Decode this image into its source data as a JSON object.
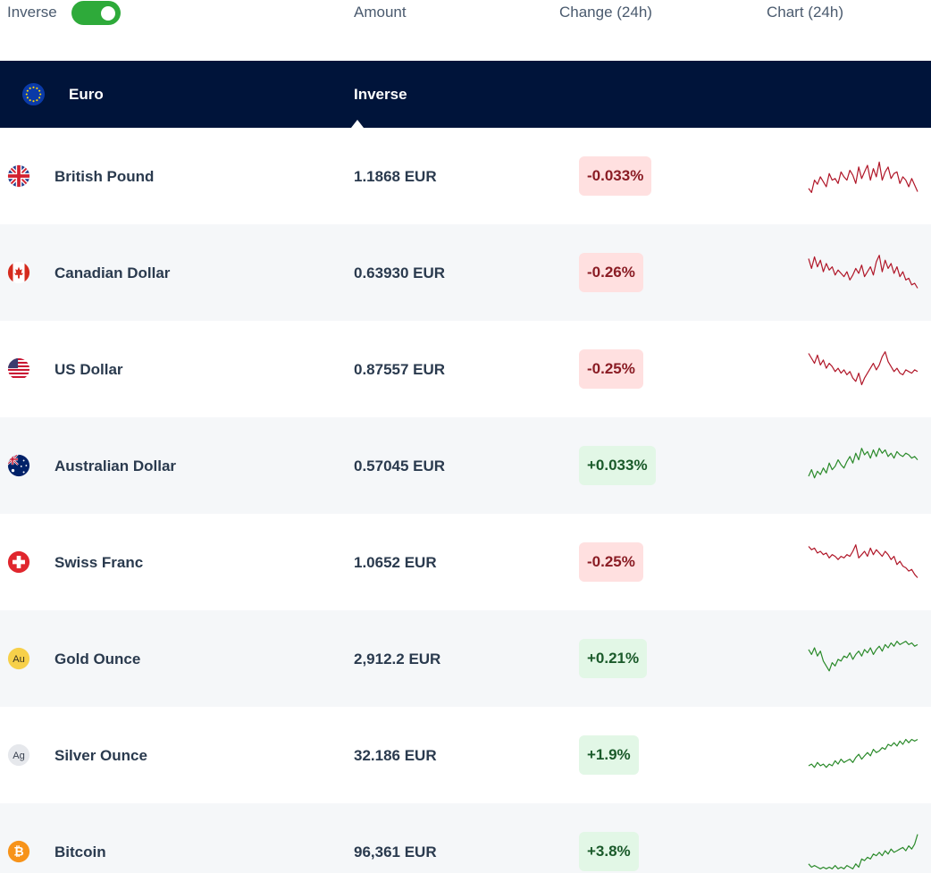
{
  "header": {
    "toggle_label": "Inverse",
    "toggle_on": true,
    "amount_label": "Amount",
    "change_label": "Change (24h)",
    "chart_label": "Chart (24h)"
  },
  "base": {
    "name": "Euro",
    "inverse_label": "Inverse",
    "icon": "eu-flag-icon"
  },
  "colors": {
    "toggle": "#2eaa3a",
    "base_row": "#00143a",
    "negative_line": "#b01628",
    "positive_line": "#2a8a2a"
  },
  "rows": [
    {
      "name": "British Pound",
      "amount": "1.1868 EUR",
      "change": "-0.033%",
      "direction": "neg",
      "icon": "uk-flag-icon",
      "spark": [
        40,
        45,
        30,
        35,
        26,
        32,
        38,
        22,
        30,
        28,
        34,
        20,
        26,
        30,
        18,
        24,
        34,
        14,
        28,
        20,
        12,
        30,
        16,
        26,
        8,
        30,
        20,
        14,
        28,
        22,
        20,
        34,
        26,
        30,
        38,
        28,
        36,
        44
      ]
    },
    {
      "name": "Canadian Dollar",
      "amount": "0.63930 EUR",
      "change": "-0.26%",
      "direction": "neg",
      "icon": "canada-flag-icon",
      "spark": [
        8,
        20,
        6,
        18,
        10,
        24,
        14,
        22,
        18,
        28,
        22,
        26,
        30,
        24,
        34,
        28,
        20,
        26,
        16,
        30,
        24,
        18,
        28,
        12,
        4,
        24,
        10,
        20,
        14,
        26,
        18,
        30,
        24,
        34,
        32,
        40,
        38,
        44
      ]
    },
    {
      "name": "US Dollar",
      "amount": "0.87557 EUR",
      "change": "-0.25%",
      "direction": "neg",
      "icon": "us-flag-icon",
      "spark": [
        6,
        12,
        18,
        8,
        20,
        14,
        24,
        18,
        22,
        28,
        24,
        30,
        26,
        32,
        28,
        36,
        40,
        30,
        44,
        36,
        30,
        24,
        18,
        26,
        20,
        10,
        4,
        16,
        22,
        28,
        24,
        30,
        32,
        26,
        28,
        30,
        26,
        28
      ]
    },
    {
      "name": "Australian Dollar",
      "amount": "0.57045 EUR",
      "change": "+0.033%",
      "direction": "pos",
      "icon": "australia-flag-icon",
      "spark": [
        38,
        30,
        40,
        32,
        36,
        28,
        34,
        22,
        30,
        26,
        18,
        24,
        28,
        20,
        14,
        22,
        10,
        18,
        4,
        12,
        8,
        16,
        6,
        14,
        4,
        10,
        6,
        14,
        10,
        16,
        8,
        12,
        14,
        10,
        12,
        16,
        14,
        18
      ]
    },
    {
      "name": "Swiss Franc",
      "amount": "1.0652 EUR",
      "change": "-0.25%",
      "direction": "neg",
      "icon": "swiss-flag-icon",
      "spark": [
        6,
        10,
        8,
        14,
        12,
        16,
        14,
        20,
        16,
        18,
        22,
        18,
        20,
        16,
        18,
        12,
        4,
        20,
        16,
        12,
        18,
        8,
        16,
        10,
        14,
        18,
        12,
        16,
        22,
        18,
        28,
        24,
        30,
        32,
        36,
        34,
        40,
        44
      ]
    },
    {
      "name": "Gold Ounce",
      "amount": "2,912.2 EUR",
      "change": "+0.21%",
      "direction": "pos",
      "icon": "gold-ounce-icon",
      "spark": [
        14,
        20,
        12,
        22,
        16,
        28,
        34,
        40,
        30,
        34,
        26,
        28,
        22,
        24,
        18,
        26,
        20,
        16,
        22,
        14,
        18,
        12,
        20,
        14,
        10,
        16,
        8,
        12,
        6,
        10,
        4,
        8,
        6,
        4,
        8,
        6,
        10,
        8
      ]
    },
    {
      "name": "Silver Ounce",
      "amount": "32.186 EUR",
      "change": "+1.9%",
      "direction": "pos",
      "icon": "silver-ounce-icon",
      "spark": [
        38,
        36,
        40,
        34,
        38,
        36,
        40,
        36,
        38,
        32,
        36,
        30,
        34,
        32,
        30,
        34,
        28,
        24,
        30,
        26,
        22,
        26,
        18,
        22,
        20,
        16,
        18,
        12,
        14,
        10,
        14,
        8,
        12,
        6,
        10,
        6,
        8,
        6
      ]
    },
    {
      "name": "Bitcoin",
      "amount": "96,361 EUR",
      "change": "+3.8%",
      "direction": "pos",
      "icon": "bitcoin-icon",
      "spark": [
        40,
        44,
        42,
        44,
        46,
        44,
        46,
        44,
        46,
        42,
        46,
        44,
        46,
        42,
        44,
        46,
        40,
        44,
        34,
        36,
        32,
        34,
        28,
        30,
        26,
        30,
        24,
        28,
        22,
        26,
        24,
        22,
        20,
        24,
        18,
        22,
        16,
        4
      ]
    }
  ]
}
